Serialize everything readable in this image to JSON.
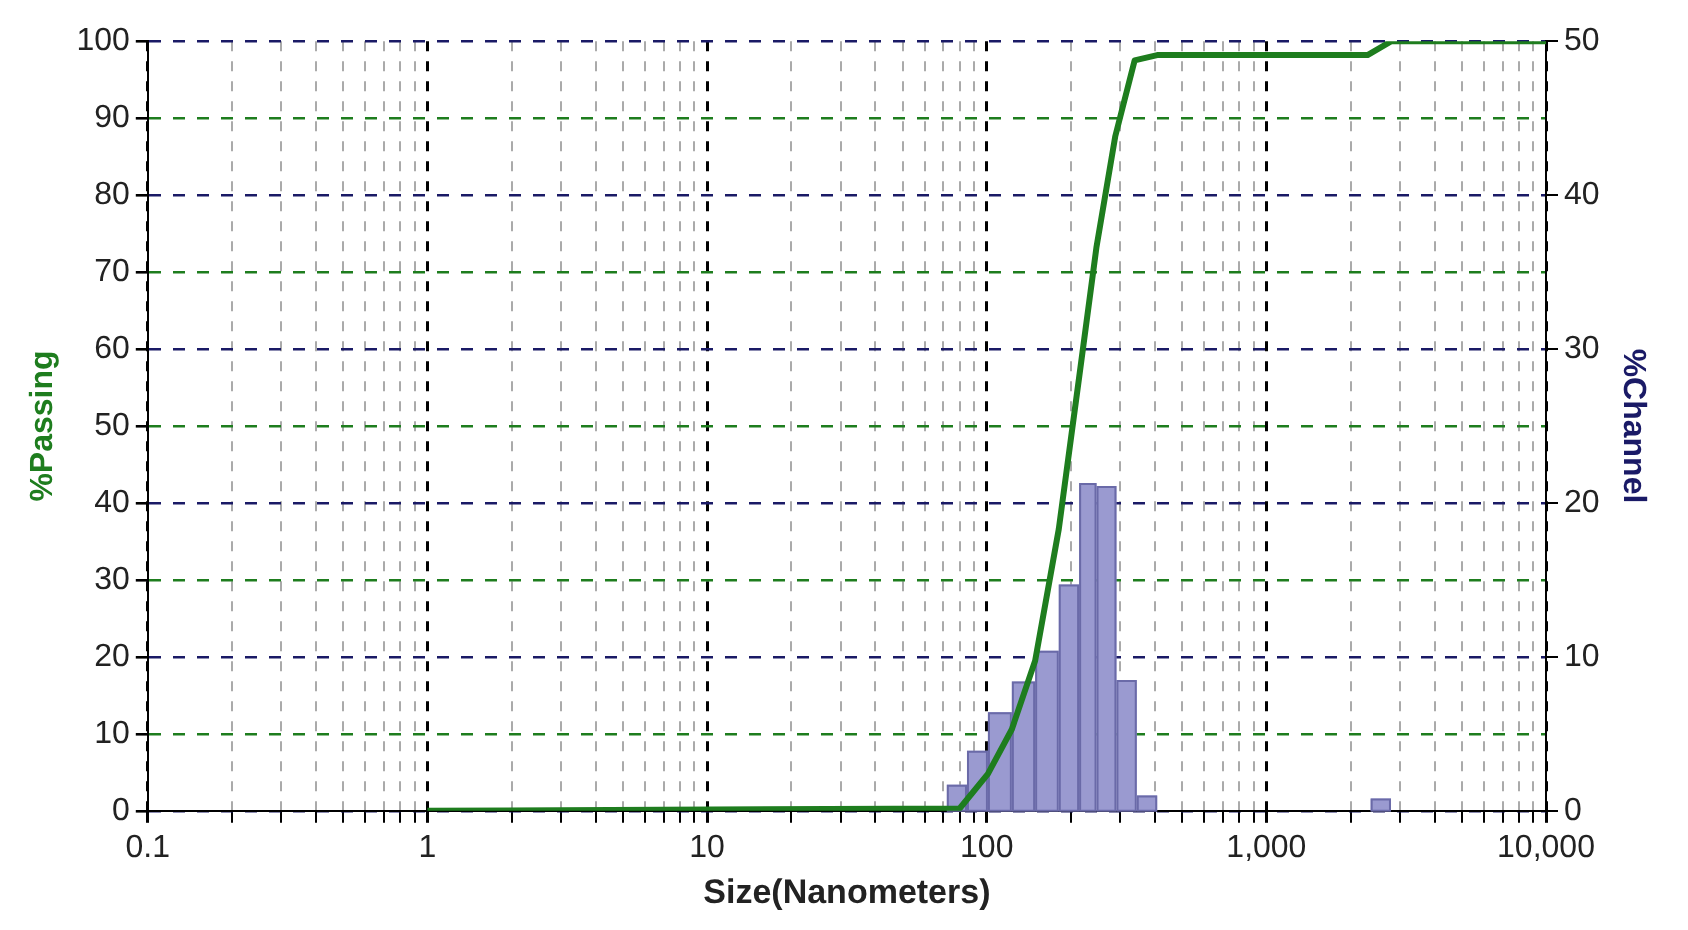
{
  "chart_data": {
    "type": "line",
    "xlabel": "Size(Nanometers)",
    "ylabel": "%Passing",
    "y2label": "%Channel",
    "log": "x",
    "grid": true,
    "legend": false,
    "marker": "none",
    "line_style": "solid",
    "xlim": [
      0.1,
      10000
    ],
    "xticks": [
      {
        "value": 0.1,
        "label": "0.1"
      },
      {
        "value": 0.2,
        "label": null
      },
      {
        "value": 0.3,
        "label": null
      },
      {
        "value": 0.4,
        "label": null
      },
      {
        "value": 0.5,
        "label": null
      },
      {
        "value": 0.6,
        "label": null
      },
      {
        "value": 0.7,
        "label": null
      },
      {
        "value": 0.8,
        "label": null
      },
      {
        "value": 0.9,
        "label": null
      },
      1,
      {
        "value": 2,
        "label": null
      },
      {
        "value": 3,
        "label": null
      },
      {
        "value": 4,
        "label": null
      },
      {
        "value": 5,
        "label": null
      },
      {
        "value": 6,
        "label": null
      },
      {
        "value": 7,
        "label": null
      },
      {
        "value": 8,
        "label": null
      },
      {
        "value": 9,
        "label": null
      },
      10,
      {
        "value": 20,
        "label": null
      },
      {
        "value": 30,
        "label": null
      },
      {
        "value": 40,
        "label": null
      },
      {
        "value": 50,
        "label": null
      },
      {
        "value": 60,
        "label": null
      },
      {
        "value": 70,
        "label": null
      },
      {
        "value": 80,
        "label": null
      },
      {
        "value": 90,
        "label": null
      },
      100,
      {
        "value": 200,
        "label": null
      },
      {
        "value": 300,
        "label": null
      },
      {
        "value": 400,
        "label": null
      },
      {
        "value": 500,
        "label": null
      },
      {
        "value": 600,
        "label": null
      },
      {
        "value": 700,
        "label": null
      },
      {
        "value": 800,
        "label": null
      },
      {
        "value": 900,
        "label": null
      },
      {
        "value": 1000,
        "label": "1,000"
      },
      {
        "value": 2000,
        "label": null
      },
      {
        "value": 3000,
        "label": null
      },
      {
        "value": 4000,
        "label": null
      },
      {
        "value": 5000,
        "label": null
      },
      {
        "value": 6000,
        "label": null
      },
      {
        "value": 7000,
        "label": null
      },
      {
        "value": 8000,
        "label": null
      },
      {
        "value": 9000,
        "label": null
      },
      {
        "value": 10000,
        "label": "10,000"
      }
    ],
    "ylim": [
      0,
      100
    ],
    "yticks": [
      0,
      10,
      20,
      30,
      40,
      50,
      60,
      70,
      80,
      90,
      100
    ],
    "y2lim": [
      0,
      50
    ],
    "y2ticks": [
      0,
      10,
      20,
      30,
      40,
      50
    ],
    "series": [
      {
        "type": "histogram",
        "axis": "y2",
        "color": "#9a9ad0",
        "bins": [
          72,
          85,
          101,
          123,
          149,
          181,
          214,
          247,
          291,
          344,
          407,
          2360,
          2790
        ],
        "values": [
          1.7,
          3.9,
          6.4,
          8.4,
          10.4,
          14.7,
          21.3,
          21.1,
          8.5,
          1.0,
          0,
          0.8
        ]
      },
      {
        "type": "line",
        "color": "#1e7d1e",
        "x": [
          1,
          80,
          101,
          123,
          149,
          181,
          214,
          247,
          288,
          338,
          407,
          2300,
          2800,
          10000
        ],
        "values": [
          0,
          0.3,
          4.8,
          10.6,
          19.5,
          36.6,
          56.3,
          73.3,
          87.6,
          97.5,
          98.2,
          98.2,
          100,
          100
        ]
      }
    ]
  }
}
